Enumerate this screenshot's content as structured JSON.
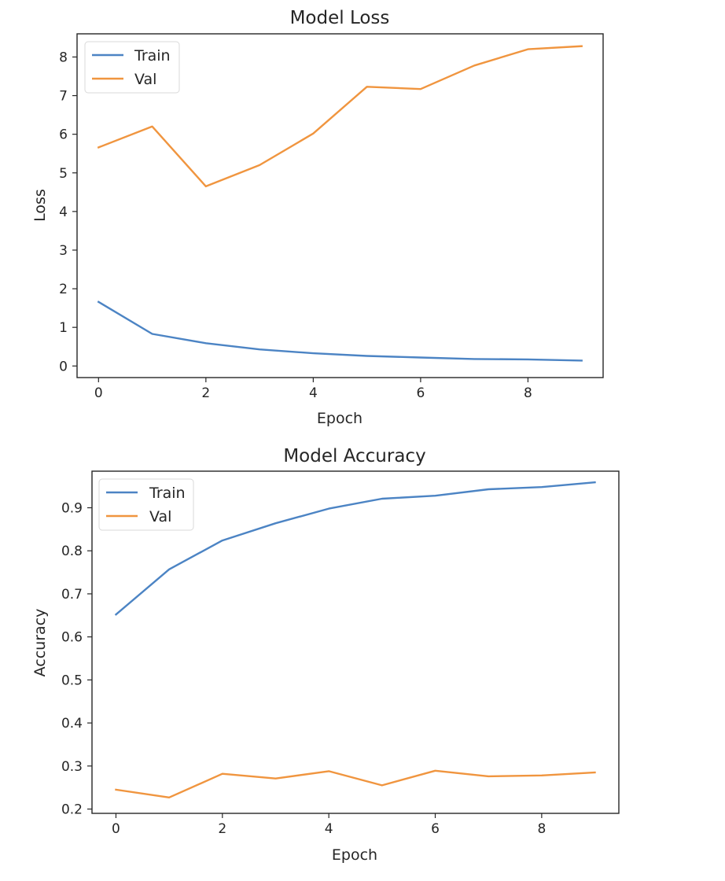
{
  "colors": {
    "train": "#4C84C4",
    "val": "#F0953F",
    "axis": "#262626",
    "legend_border": "#d9d9d9"
  },
  "chart_data": [
    {
      "type": "line",
      "title": "Model Loss",
      "xlabel": "Epoch",
      "ylabel": "Loss",
      "x": [
        0,
        1,
        2,
        3,
        4,
        5,
        6,
        7,
        8,
        9
      ],
      "xlim": [
        -0.4,
        9.4
      ],
      "ylim": [
        -0.3,
        8.6
      ],
      "xticks": [
        0,
        2,
        4,
        6,
        8
      ],
      "yticks": [
        0,
        1,
        2,
        3,
        4,
        5,
        6,
        7,
        8
      ],
      "grid": false,
      "legend_position": "top-left",
      "series": [
        {
          "name": "Train",
          "color_key": "train",
          "values": [
            1.66,
            0.83,
            0.59,
            0.43,
            0.33,
            0.26,
            0.22,
            0.18,
            0.17,
            0.14
          ]
        },
        {
          "name": "Val",
          "color_key": "val",
          "values": [
            5.66,
            6.2,
            4.65,
            5.2,
            6.02,
            7.23,
            7.17,
            7.78,
            8.2,
            8.28
          ]
        }
      ]
    },
    {
      "type": "line",
      "title": "Model Accuracy",
      "xlabel": "Epoch",
      "ylabel": "Accuracy",
      "x": [
        0,
        1,
        2,
        3,
        4,
        5,
        6,
        7,
        8,
        9
      ],
      "xlim": [
        -0.45,
        9.45
      ],
      "ylim": [
        0.19,
        0.985
      ],
      "xticks": [
        0,
        2,
        4,
        6,
        8
      ],
      "yticks": [
        0.2,
        0.3,
        0.4,
        0.5,
        0.6,
        0.7,
        0.8,
        0.9
      ],
      "grid": false,
      "legend_position": "top-left",
      "series": [
        {
          "name": "Train",
          "color_key": "train",
          "values": [
            0.652,
            0.757,
            0.824,
            0.864,
            0.898,
            0.921,
            0.928,
            0.943,
            0.948,
            0.959
          ]
        },
        {
          "name": "Val",
          "color_key": "val",
          "values": [
            0.245,
            0.227,
            0.282,
            0.271,
            0.288,
            0.255,
            0.289,
            0.276,
            0.278,
            0.285
          ]
        }
      ]
    }
  ]
}
